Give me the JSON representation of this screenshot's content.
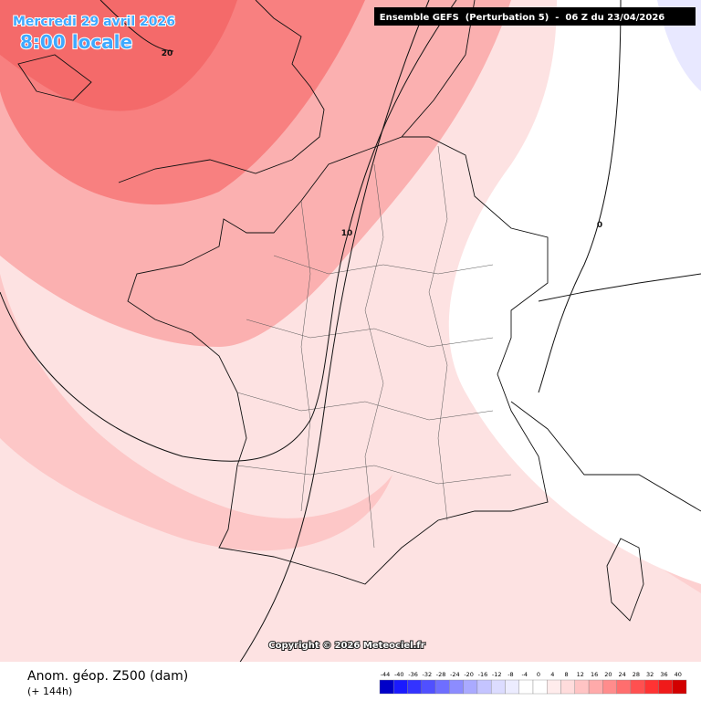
{
  "header": {
    "date": "Mercredi 29 avril 2026",
    "time": "8:00 locale",
    "model": "Ensemble GEFS  (Perturbation 5)  -  06 Z du 23/04/2026"
  },
  "map": {
    "contour_labels": [
      20,
      10,
      0
    ],
    "copyright": "Copyright © 2026 Meteociel.fr"
  },
  "footer": {
    "title": "Anom. géop. Z500 (dam)",
    "lead": "(+ 144h)"
  },
  "colorbar": {
    "labels": [
      -44,
      -40,
      -36,
      -32,
      -28,
      -24,
      -20,
      -16,
      -12,
      -8,
      -4,
      0,
      4,
      8,
      12,
      16,
      20,
      24,
      28,
      32,
      36,
      40
    ],
    "colors": [
      "#0000c8",
      "#1a1aff",
      "#3333ff",
      "#5050ff",
      "#6e6eff",
      "#8c8cff",
      "#aaaaff",
      "#c4c4ff",
      "#dcdcff",
      "#ececff",
      "#ffffff",
      "#ffffff",
      "#ffecec",
      "#ffdcdc",
      "#ffc4c4",
      "#ffaaaa",
      "#ff8c8c",
      "#ff6e6e",
      "#ff5050",
      "#ff3333",
      "#f01a1a",
      "#d20000"
    ]
  }
}
